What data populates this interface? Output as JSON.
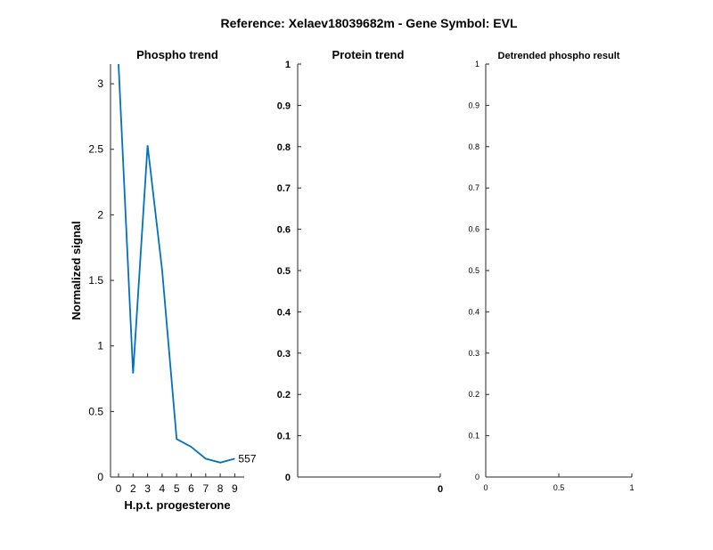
{
  "figure": {
    "title": "Reference:  Xelaev18039682m - Gene Symbol:  EVL"
  },
  "colors": {
    "axis": "#262626",
    "line": "#0072BD",
    "background": "#ffffff"
  },
  "chart_data": [
    {
      "type": "line",
      "title": "Phospho trend",
      "xlabel": "H.p.t. progesterone",
      "ylabel": "Normalized signal",
      "x_ticks": [
        0,
        2,
        3,
        4,
        5,
        6,
        7,
        8,
        9
      ],
      "y_ticks": [
        "0",
        "0.5",
        "1",
        "1.5",
        "2",
        "2.5",
        "3"
      ],
      "ylim": [
        0,
        3.15
      ],
      "grid": false,
      "series": [
        {
          "x": [
            0,
            2,
            3,
            4,
            5,
            6,
            7,
            8,
            9
          ],
          "y": [
            3.15,
            0.79,
            2.53,
            1.58,
            0.29,
            0.23,
            0.14,
            0.11,
            0.14
          ],
          "end_label": "557"
        }
      ]
    },
    {
      "type": "line",
      "title": "Protein trend",
      "xlabel": "",
      "ylabel": "",
      "x_ticks": [
        "0"
      ],
      "y_ticks": [
        "0",
        "0.1",
        "0.2",
        "0.3",
        "0.4",
        "0.5",
        "0.6",
        "0.7",
        "0.8",
        "0.9",
        "1"
      ],
      "ylim": [
        0,
        1
      ],
      "grid": false,
      "series": []
    },
    {
      "type": "line",
      "title": "Detrended phospho result",
      "xlabel": "",
      "ylabel": "",
      "x_ticks": [
        "0",
        "0.5",
        "1"
      ],
      "xlim": [
        0,
        1
      ],
      "y_ticks": [
        "0",
        "0.1",
        "0.2",
        "0.3",
        "0.4",
        "0.5",
        "0.6",
        "0.7",
        "0.8",
        "0.9",
        "1"
      ],
      "ylim": [
        0,
        1
      ],
      "grid": false,
      "series": []
    }
  ]
}
